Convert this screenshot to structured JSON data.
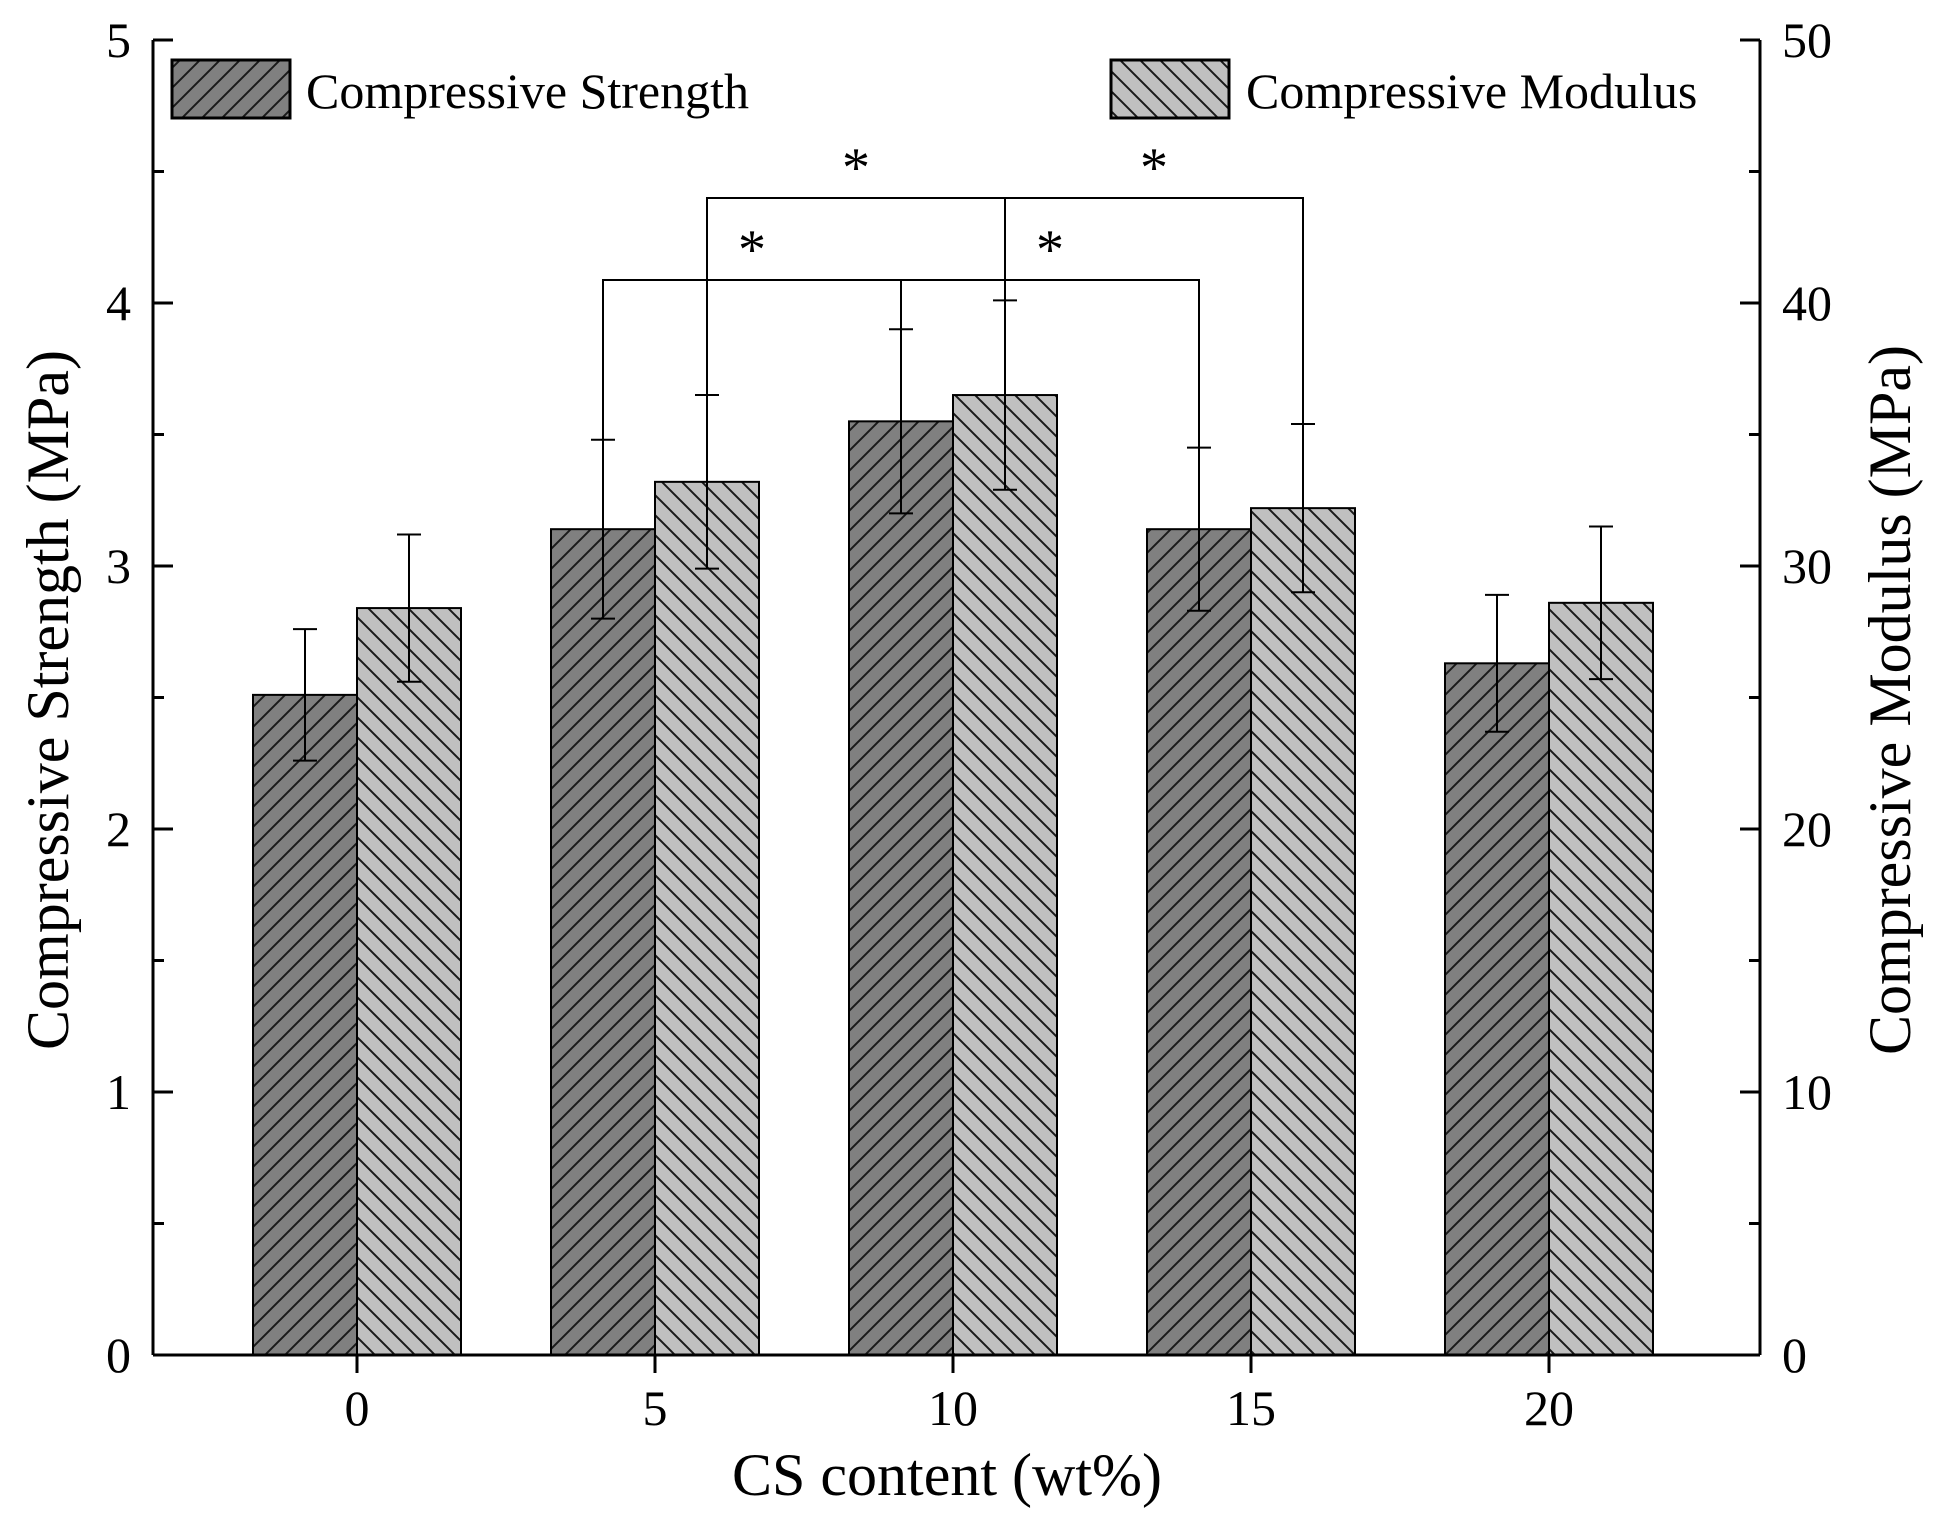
{
  "chart_data": {
    "type": "bar",
    "categories": [
      "0",
      "5",
      "10",
      "15",
      "20"
    ],
    "xlabel": "CS content (wt%)",
    "ylabel": "Compressive Strength (MPa)",
    "y2label": "Compressive Modulus (MPa)",
    "ylim": [
      0,
      5
    ],
    "y2lim": [
      0,
      50
    ],
    "yticks": [
      "0",
      "1",
      "2",
      "3",
      "4",
      "5"
    ],
    "y2ticks": [
      "0",
      "10",
      "20",
      "30",
      "40",
      "50"
    ],
    "legend_position": "top",
    "series": [
      {
        "name": "Compressive Strength",
        "axis": "left",
        "color": "#808080",
        "pattern": "forward-diagonal-hatch",
        "values": [
          2.51,
          3.14,
          3.55,
          3.14,
          2.63
        ],
        "errors": [
          0.25,
          0.34,
          0.35,
          0.31,
          0.26
        ]
      },
      {
        "name": "Compressive Modulus",
        "axis": "right",
        "color": "#c0c0c0",
        "pattern": "backward-diagonal-hatch",
        "values": [
          28.4,
          33.2,
          36.5,
          32.2,
          28.6
        ],
        "errors": [
          2.8,
          3.3,
          3.6,
          3.2,
          2.9
        ]
      }
    ],
    "significance": [
      {
        "series": "Compressive Strength",
        "from": "5",
        "to": "10",
        "label": "*"
      },
      {
        "series": "Compressive Strength",
        "from": "10",
        "to": "15",
        "label": "*"
      },
      {
        "series": "Compressive Modulus",
        "from": "5",
        "to": "10",
        "label": "*"
      },
      {
        "series": "Compressive Modulus",
        "from": "10",
        "to": "15",
        "label": "*"
      }
    ]
  }
}
